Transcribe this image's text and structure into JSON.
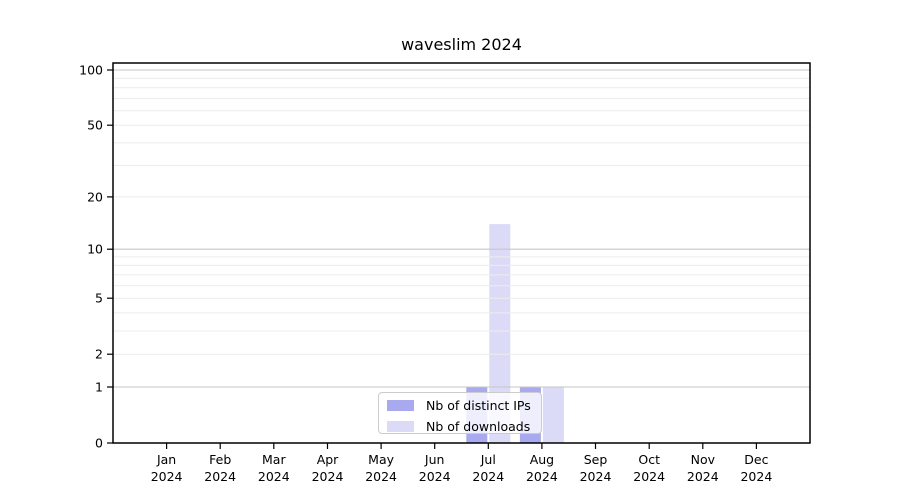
{
  "figure": {
    "title": "waveslim 2024"
  },
  "chart_data": {
    "type": "bar",
    "title": "waveslim 2024",
    "x": {
      "categories": [
        "Jan",
        "Feb",
        "Mar",
        "Apr",
        "May",
        "Jun",
        "Jul",
        "Aug",
        "Sep",
        "Oct",
        "Nov",
        "Dec"
      ],
      "year": "2024"
    },
    "series": [
      {
        "name": "Nb of distinct IPs",
        "color": "#a9a9ef",
        "values": [
          0,
          0,
          0,
          0,
          0,
          0,
          1,
          1,
          0,
          0,
          0,
          0
        ]
      },
      {
        "name": "Nb of downloads",
        "color": "#dbdbf8",
        "values": [
          0,
          0,
          0,
          0,
          0,
          0,
          14,
          1,
          0,
          0,
          0,
          0
        ]
      }
    ],
    "y_axis": {
      "scale": "log1p",
      "tick_values": [
        0,
        1,
        2,
        5,
        10,
        20,
        50,
        100
      ],
      "major_gridlines": [
        1,
        10,
        100
      ],
      "minor_gridlines": [
        2,
        3,
        4,
        5,
        6,
        7,
        8,
        9,
        20,
        30,
        40,
        50,
        60,
        70,
        80,
        90
      ],
      "ymax": 109
    },
    "legend": {
      "position": "lower center"
    }
  },
  "colors": {
    "frame": "#000000",
    "major_grid": "#c6c6c6",
    "minor_grid": "#ececec",
    "tick": "#000000",
    "text": "#000000",
    "background": "#ffffff"
  }
}
